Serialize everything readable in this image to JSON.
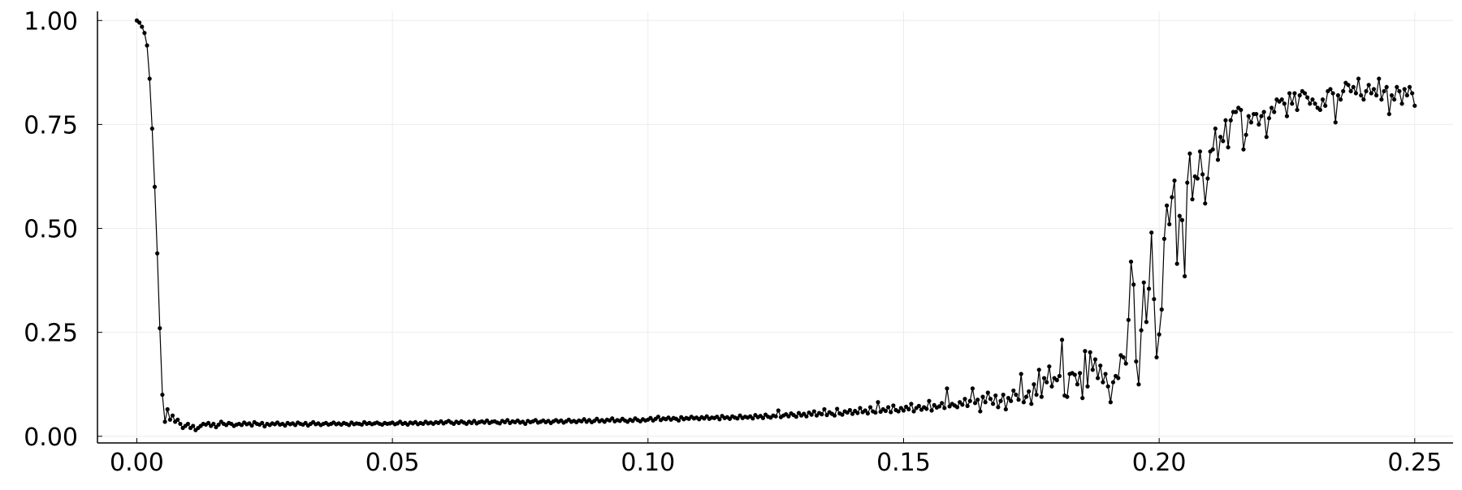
{
  "chart_data": {
    "type": "line",
    "color": "#000000",
    "markers": true,
    "grid": true,
    "xlim": [
      -0.0077,
      0.2575
    ],
    "ylim": [
      -0.016,
      1.022
    ],
    "xticks": [
      {
        "value": 0,
        "label": "0.00"
      },
      {
        "value": 0.05,
        "label": "0.05"
      },
      {
        "value": 0.1,
        "label": "0.10"
      },
      {
        "value": 0.15,
        "label": "0.15"
      },
      {
        "value": 0.2,
        "label": "0.20"
      },
      {
        "value": 0.25,
        "label": "0.25"
      }
    ],
    "yticks": [
      {
        "value": 0,
        "label": "0.00"
      },
      {
        "value": 0.25,
        "label": "0.25"
      },
      {
        "value": 0.5,
        "label": "0.50"
      },
      {
        "value": 0.75,
        "label": "0.75"
      },
      {
        "value": 1,
        "label": "1.00"
      }
    ],
    "x": [
      0,
      0.0005,
      0.001,
      0.0015,
      0.002,
      0.0025,
      0.003,
      0.0035,
      0.004,
      0.0045,
      0.005,
      0.0055,
      0.006,
      0.0065,
      0.007,
      0.0075,
      0.008,
      0.0085,
      0.009,
      0.0095,
      0.01,
      0.0105,
      0.011,
      0.0115,
      0.012,
      0.0125,
      0.013,
      0.0135,
      0.014,
      0.0145,
      0.015,
      0.0155,
      0.016,
      0.0165,
      0.017,
      0.0175,
      0.018,
      0.0185,
      0.019,
      0.0195,
      0.02,
      0.0205,
      0.021,
      0.0215,
      0.022,
      0.0225,
      0.023,
      0.0235,
      0.024,
      0.0245,
      0.025,
      0.0255,
      0.026,
      0.0265,
      0.027,
      0.0275,
      0.028,
      0.0285,
      0.029,
      0.0295,
      0.03,
      0.0305,
      0.031,
      0.0315,
      0.032,
      0.0325,
      0.033,
      0.0335,
      0.034,
      0.0345,
      0.035,
      0.0355,
      0.036,
      0.0365,
      0.037,
      0.0375,
      0.038,
      0.0385,
      0.039,
      0.0395,
      0.04,
      0.0405,
      0.041,
      0.0415,
      0.042,
      0.0425,
      0.043,
      0.0435,
      0.044,
      0.0445,
      0.045,
      0.0455,
      0.046,
      0.0465,
      0.047,
      0.0475,
      0.048,
      0.0485,
      0.049,
      0.0495,
      0.05,
      0.0505,
      0.051,
      0.0515,
      0.052,
      0.0525,
      0.053,
      0.0535,
      0.054,
      0.0545,
      0.055,
      0.0555,
      0.056,
      0.0565,
      0.057,
      0.0575,
      0.058,
      0.0585,
      0.059,
      0.0595,
      0.06,
      0.0605,
      0.061,
      0.0615,
      0.062,
      0.0625,
      0.063,
      0.0635,
      0.064,
      0.0645,
      0.065,
      0.0655,
      0.066,
      0.0665,
      0.067,
      0.0675,
      0.068,
      0.0685,
      0.069,
      0.0695,
      0.07,
      0.0705,
      0.071,
      0.0715,
      0.072,
      0.0725,
      0.073,
      0.0735,
      0.074,
      0.0745,
      0.075,
      0.0755,
      0.076,
      0.0765,
      0.077,
      0.0775,
      0.078,
      0.0785,
      0.079,
      0.0795,
      0.08,
      0.0805,
      0.081,
      0.0815,
      0.082,
      0.0825,
      0.083,
      0.0835,
      0.084,
      0.0845,
      0.085,
      0.0855,
      0.086,
      0.0865,
      0.087,
      0.0875,
      0.088,
      0.0885,
      0.089,
      0.0895,
      0.09,
      0.0905,
      0.091,
      0.0915,
      0.092,
      0.0925,
      0.093,
      0.0935,
      0.094,
      0.0945,
      0.095,
      0.0955,
      0.096,
      0.0965,
      0.097,
      0.0975,
      0.098,
      0.0985,
      0.099,
      0.0995,
      0.1,
      0.1005,
      0.101,
      0.1015,
      0.102,
      0.1025,
      0.103,
      0.1035,
      0.104,
      0.1045,
      0.105,
      0.1055,
      0.106,
      0.1065,
      0.107,
      0.1075,
      0.108,
      0.1085,
      0.109,
      0.1095,
      0.11,
      0.1105,
      0.111,
      0.1115,
      0.112,
      0.1125,
      0.113,
      0.1135,
      0.114,
      0.1145,
      0.115,
      0.1155,
      0.116,
      0.1165,
      0.117,
      0.1175,
      0.118,
      0.1185,
      0.119,
      0.1195,
      0.12,
      0.1205,
      0.121,
      0.1215,
      0.122,
      0.1225,
      0.123,
      0.1235,
      0.124,
      0.1245,
      0.125,
      0.1255,
      0.126,
      0.1265,
      0.127,
      0.1275,
      0.128,
      0.1285,
      0.129,
      0.1295,
      0.13,
      0.1305,
      0.131,
      0.1315,
      0.132,
      0.1325,
      0.133,
      0.1335,
      0.134,
      0.1345,
      0.135,
      0.1355,
      0.136,
      0.1365,
      0.137,
      0.1375,
      0.138,
      0.1385,
      0.139,
      0.1395,
      0.14,
      0.1405,
      0.141,
      0.1415,
      0.142,
      0.1425,
      0.143,
      0.1435,
      0.144,
      0.1445,
      0.145,
      0.1455,
      0.146,
      0.1465,
      0.147,
      0.1475,
      0.148,
      0.1485,
      0.149,
      0.1495,
      0.15,
      0.1505,
      0.151,
      0.1515,
      0.152,
      0.1525,
      0.153,
      0.1535,
      0.154,
      0.1545,
      0.155,
      0.1555,
      0.156,
      0.1565,
      0.157,
      0.1575,
      0.158,
      0.1585,
      0.159,
      0.1595,
      0.16,
      0.1605,
      0.161,
      0.1615,
      0.162,
      0.1625,
      0.163,
      0.1635,
      0.164,
      0.1645,
      0.165,
      0.1655,
      0.166,
      0.1665,
      0.167,
      0.1675,
      0.168,
      0.1685,
      0.169,
      0.1695,
      0.17,
      0.1705,
      0.171,
      0.1715,
      0.172,
      0.1725,
      0.173,
      0.1735,
      0.174,
      0.1745,
      0.175,
      0.1755,
      0.176,
      0.1765,
      0.177,
      0.1775,
      0.178,
      0.1785,
      0.179,
      0.1795,
      0.18,
      0.1805,
      0.181,
      0.1815,
      0.182,
      0.1825,
      0.183,
      0.1835,
      0.184,
      0.1845,
      0.185,
      0.1855,
      0.186,
      0.1865,
      0.187,
      0.1875,
      0.188,
      0.1885,
      0.189,
      0.1895,
      0.19,
      0.1905,
      0.191,
      0.1915,
      0.192,
      0.1925,
      0.193,
      0.1935,
      0.194,
      0.1945,
      0.195,
      0.1955,
      0.196,
      0.1965,
      0.197,
      0.1975,
      0.198,
      0.1985,
      0.199,
      0.1995,
      0.2,
      0.2005,
      0.201,
      0.2015,
      0.202,
      0.2025,
      0.203,
      0.2035,
      0.204,
      0.2045,
      0.205,
      0.2055,
      0.206,
      0.2065,
      0.207,
      0.2075,
      0.208,
      0.2085,
      0.209,
      0.2095,
      0.21,
      0.2105,
      0.211,
      0.2115,
      0.212,
      0.2125,
      0.213,
      0.2135,
      0.214,
      0.2145,
      0.215,
      0.2155,
      0.216,
      0.2165,
      0.217,
      0.2175,
      0.218,
      0.2185,
      0.219,
      0.2195,
      0.22,
      0.2205,
      0.221,
      0.2215,
      0.222,
      0.2225,
      0.223,
      0.2235,
      0.224,
      0.2245,
      0.225,
      0.2255,
      0.226,
      0.2265,
      0.227,
      0.2275,
      0.228,
      0.2285,
      0.229,
      0.2295,
      0.23,
      0.2305,
      0.231,
      0.2315,
      0.232,
      0.2325,
      0.233,
      0.2335,
      0.234,
      0.2345,
      0.235,
      0.2355,
      0.236,
      0.2365,
      0.237,
      0.2375,
      0.238,
      0.2385,
      0.239,
      0.2395,
      0.24,
      0.2405,
      0.241,
      0.2415,
      0.242,
      0.2425,
      0.243,
      0.2435,
      0.244,
      0.2445,
      0.245,
      0.2455,
      0.246,
      0.2465,
      0.247,
      0.2475,
      0.248,
      0.2485,
      0.249,
      0.2495,
      0.25
    ],
    "values": [
      1.0,
      0.995,
      0.985,
      0.97,
      0.94,
      0.86,
      0.74,
      0.6,
      0.44,
      0.26,
      0.1,
      0.035,
      0.065,
      0.04,
      0.05,
      0.035,
      0.04,
      0.03,
      0.02,
      0.025,
      0.03,
      0.02,
      0.025,
      0.015,
      0.02,
      0.025,
      0.03,
      0.028,
      0.032,
      0.025,
      0.03,
      0.022,
      0.028,
      0.035,
      0.03,
      0.027,
      0.032,
      0.03,
      0.025,
      0.028,
      0.03,
      0.027,
      0.033,
      0.029,
      0.031,
      0.026,
      0.034,
      0.03,
      0.028,
      0.032,
      0.024,
      0.03,
      0.027,
      0.031,
      0.029,
      0.033,
      0.028,
      0.03,
      0.026,
      0.032,
      0.029,
      0.031,
      0.027,
      0.033,
      0.03,
      0.028,
      0.032,
      0.026,
      0.03,
      0.034,
      0.029,
      0.031,
      0.027,
      0.03,
      0.032,
      0.028,
      0.03,
      0.033,
      0.029,
      0.031,
      0.028,
      0.032,
      0.03,
      0.027,
      0.033,
      0.029,
      0.031,
      0.03,
      0.028,
      0.034,
      0.03,
      0.032,
      0.029,
      0.031,
      0.033,
      0.03,
      0.028,
      0.032,
      0.03,
      0.031,
      0.033,
      0.029,
      0.031,
      0.035,
      0.03,
      0.032,
      0.028,
      0.033,
      0.031,
      0.034,
      0.029,
      0.032,
      0.03,
      0.035,
      0.031,
      0.033,
      0.03,
      0.034,
      0.032,
      0.036,
      0.031,
      0.034,
      0.037,
      0.033,
      0.03,
      0.035,
      0.032,
      0.036,
      0.033,
      0.03,
      0.035,
      0.032,
      0.037,
      0.031,
      0.034,
      0.036,
      0.033,
      0.038,
      0.032,
      0.035,
      0.036,
      0.033,
      0.031,
      0.037,
      0.034,
      0.039,
      0.032,
      0.036,
      0.034,
      0.038,
      0.033,
      0.035,
      0.03,
      0.037,
      0.034,
      0.036,
      0.039,
      0.033,
      0.035,
      0.038,
      0.034,
      0.037,
      0.032,
      0.036,
      0.039,
      0.035,
      0.038,
      0.033,
      0.036,
      0.04,
      0.035,
      0.037,
      0.034,
      0.038,
      0.036,
      0.041,
      0.035,
      0.039,
      0.034,
      0.037,
      0.042,
      0.036,
      0.039,
      0.035,
      0.04,
      0.038,
      0.043,
      0.036,
      0.039,
      0.037,
      0.042,
      0.038,
      0.035,
      0.04,
      0.037,
      0.043,
      0.039,
      0.036,
      0.041,
      0.038,
      0.04,
      0.044,
      0.038,
      0.042,
      0.047,
      0.039,
      0.043,
      0.041,
      0.045,
      0.04,
      0.044,
      0.042,
      0.038,
      0.046,
      0.041,
      0.044,
      0.042,
      0.047,
      0.043,
      0.045,
      0.041,
      0.046,
      0.043,
      0.048,
      0.042,
      0.045,
      0.044,
      0.047,
      0.041,
      0.049,
      0.044,
      0.046,
      0.042,
      0.048,
      0.045,
      0.043,
      0.05,
      0.044,
      0.047,
      0.045,
      0.048,
      0.043,
      0.051,
      0.046,
      0.049,
      0.044,
      0.052,
      0.047,
      0.045,
      0.05,
      0.048,
      0.062,
      0.046,
      0.05,
      0.053,
      0.048,
      0.055,
      0.051,
      0.047,
      0.056,
      0.05,
      0.054,
      0.048,
      0.057,
      0.052,
      0.06,
      0.05,
      0.056,
      0.053,
      0.065,
      0.051,
      0.058,
      0.054,
      0.05,
      0.066,
      0.055,
      0.052,
      0.06,
      0.057,
      0.063,
      0.054,
      0.061,
      0.056,
      0.068,
      0.058,
      0.062,
      0.055,
      0.07,
      0.06,
      0.057,
      0.082,
      0.059,
      0.065,
      0.061,
      0.07,
      0.058,
      0.074,
      0.063,
      0.06,
      0.068,
      0.062,
      0.071,
      0.065,
      0.078,
      0.06,
      0.068,
      0.073,
      0.064,
      0.07,
      0.066,
      0.085,
      0.062,
      0.075,
      0.069,
      0.072,
      0.08,
      0.068,
      0.115,
      0.072,
      0.078,
      0.074,
      0.07,
      0.082,
      0.076,
      0.09,
      0.073,
      0.085,
      0.115,
      0.08,
      0.088,
      0.06,
      0.095,
      0.082,
      0.105,
      0.09,
      0.078,
      0.098,
      0.07,
      0.085,
      0.1,
      0.065,
      0.092,
      0.085,
      0.11,
      0.1,
      0.088,
      0.15,
      0.082,
      0.095,
      0.108,
      0.078,
      0.125,
      0.1,
      0.16,
      0.095,
      0.14,
      0.13,
      0.168,
      0.12,
      0.14,
      0.135,
      0.145,
      0.232,
      0.098,
      0.095,
      0.15,
      0.152,
      0.148,
      0.125,
      0.152,
      0.092,
      0.205,
      0.12,
      0.202,
      0.16,
      0.185,
      0.14,
      0.17,
      0.13,
      0.15,
      0.12,
      0.082,
      0.13,
      0.145,
      0.14,
      0.195,
      0.19,
      0.175,
      0.28,
      0.42,
      0.365,
      0.18,
      0.125,
      0.255,
      0.37,
      0.275,
      0.355,
      0.49,
      0.33,
      0.19,
      0.245,
      0.305,
      0.475,
      0.555,
      0.51,
      0.575,
      0.615,
      0.415,
      0.53,
      0.52,
      0.385,
      0.61,
      0.68,
      0.57,
      0.625,
      0.62,
      0.685,
      0.63,
      0.56,
      0.62,
      0.685,
      0.69,
      0.74,
      0.665,
      0.72,
      0.71,
      0.76,
      0.695,
      0.76,
      0.78,
      0.78,
      0.79,
      0.785,
      0.69,
      0.725,
      0.77,
      0.755,
      0.775,
      0.775,
      0.75,
      0.77,
      0.78,
      0.72,
      0.765,
      0.79,
      0.78,
      0.81,
      0.805,
      0.81,
      0.8,
      0.77,
      0.825,
      0.8,
      0.825,
      0.785,
      0.82,
      0.83,
      0.825,
      0.815,
      0.8,
      0.81,
      0.8,
      0.79,
      0.785,
      0.81,
      0.795,
      0.83,
      0.835,
      0.825,
      0.755,
      0.82,
      0.81,
      0.83,
      0.85,
      0.845,
      0.83,
      0.84,
      0.825,
      0.86,
      0.82,
      0.81,
      0.83,
      0.845,
      0.825,
      0.835,
      0.82,
      0.86,
      0.81,
      0.83,
      0.84,
      0.775,
      0.82,
      0.81,
      0.84,
      0.83,
      0.8,
      0.835,
      0.82,
      0.84,
      0.825,
      0.795
    ]
  }
}
